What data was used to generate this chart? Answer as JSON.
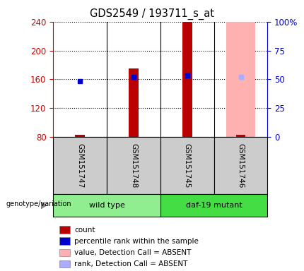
{
  "title": "GDS2549 / 193711_s_at",
  "samples": [
    "GSM151747",
    "GSM151748",
    "GSM151745",
    "GSM151746"
  ],
  "groups": [
    {
      "label": "wild type",
      "samples": [
        0,
        1
      ],
      "color": "#90ee90"
    },
    {
      "label": "daf-19 mutant",
      "samples": [
        2,
        3
      ],
      "color": "#44dd44"
    }
  ],
  "ylim_left": [
    80,
    240
  ],
  "ylim_right": [
    0,
    100
  ],
  "yticks_left": [
    80,
    120,
    160,
    200,
    240
  ],
  "yticks_right": [
    0,
    25,
    50,
    75,
    100
  ],
  "bar_values": [
    83,
    175,
    240,
    83
  ],
  "bar_bottom": 80,
  "bar_color": "#bb0000",
  "bar_width": 0.18,
  "absent_bar_sample": 3,
  "absent_bar_color": "#ffb0b0",
  "absent_bar_width": 0.55,
  "percentile_values": [
    157,
    163,
    165,
    163
  ],
  "percentile_color": "#0000cc",
  "absent_percentile_sample": 3,
  "absent_percentile_color": "#aaaaff",
  "sample_box_color": "#cccccc",
  "group_box_color_1": "#90ee90",
  "group_box_color_2": "#44dd44",
  "left_axis_color": "#cc0000",
  "right_axis_color": "#0000cc",
  "legend_items": [
    {
      "color": "#bb0000",
      "label": "count",
      "square": true
    },
    {
      "color": "#0000cc",
      "label": "percentile rank within the sample",
      "square": true
    },
    {
      "color": "#ffb0b0",
      "label": "value, Detection Call = ABSENT",
      "square": true
    },
    {
      "color": "#aaaaff",
      "label": "rank, Detection Call = ABSENT",
      "square": true
    }
  ]
}
